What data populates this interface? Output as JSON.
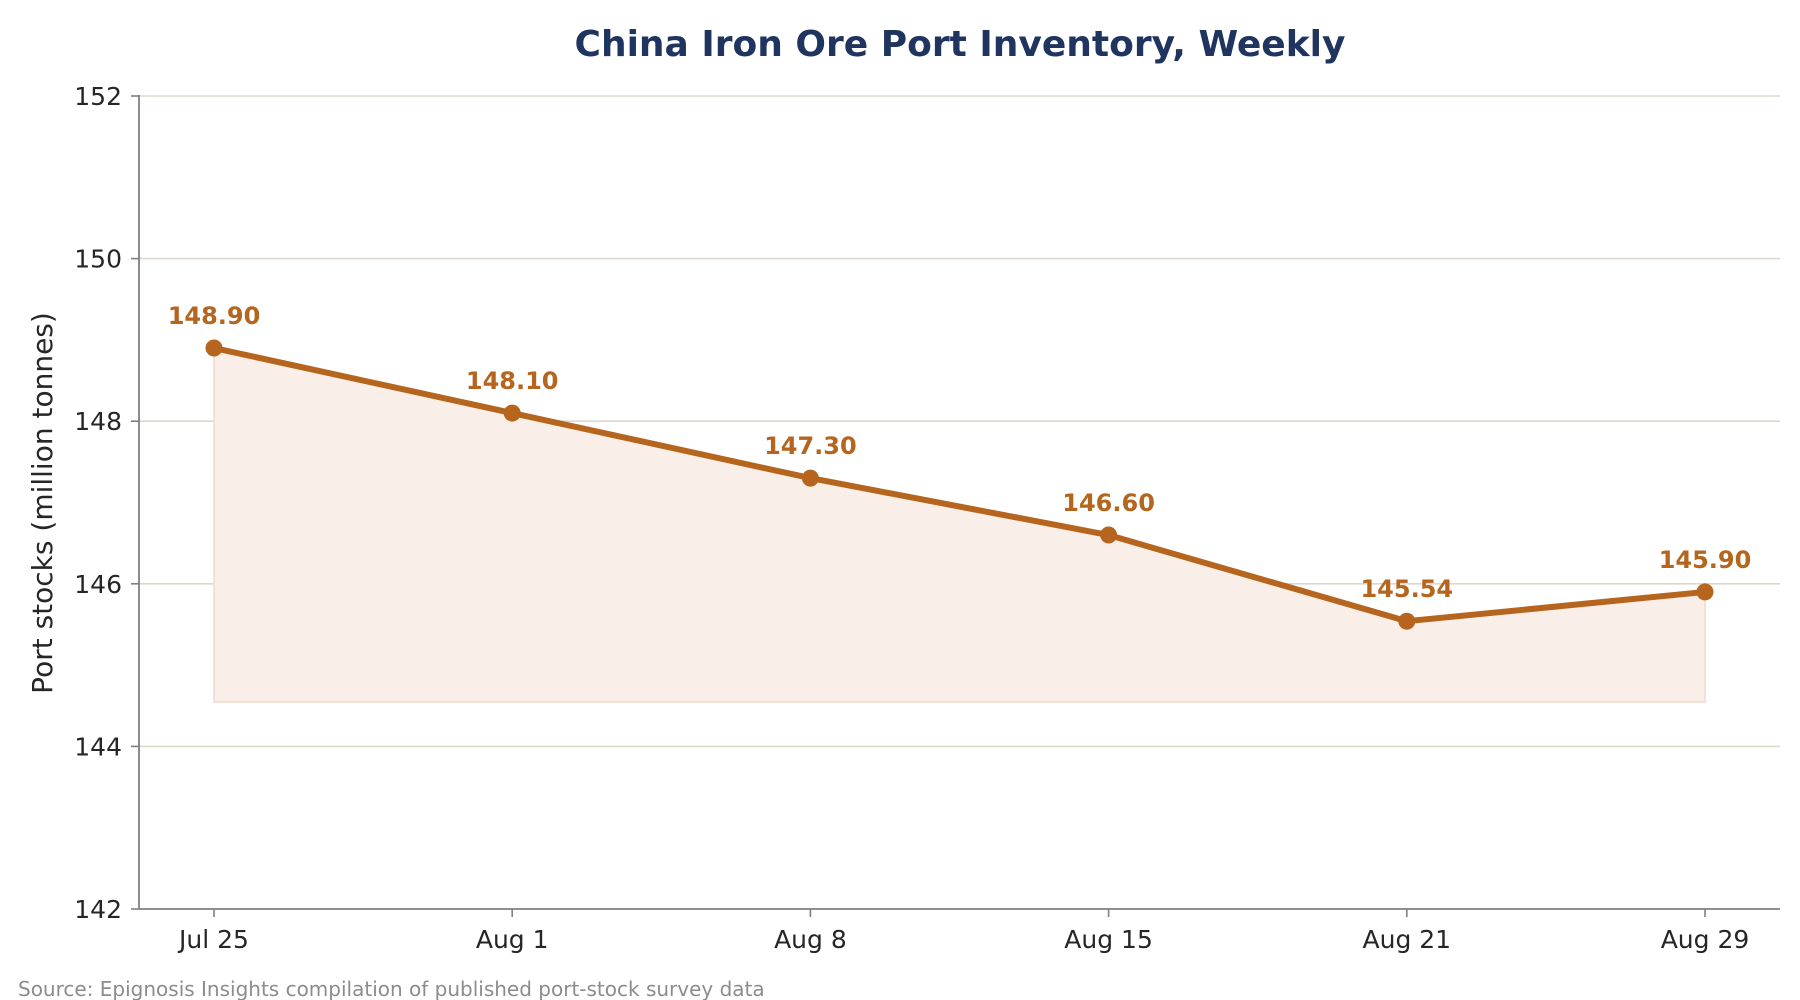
{
  "chart_data": {
    "type": "line",
    "title": "China Iron Ore Port Inventory, Weekly",
    "xlabel": "",
    "ylabel": "Port stocks (million tonnes)",
    "categories": [
      "Jul 25",
      "Aug 1",
      "Aug 8",
      "Aug 15",
      "Aug 21",
      "Aug 29"
    ],
    "series": [
      {
        "values": [
          148.9,
          148.1,
          147.3,
          146.6,
          145.54,
          145.9
        ],
        "labels": [
          "148.90",
          "148.10",
          "147.30",
          "146.60",
          "145.54",
          "145.90"
        ],
        "color": "#b5651d"
      }
    ],
    "ylim": [
      142,
      152
    ],
    "yticks": [
      142,
      144,
      146,
      148,
      150,
      152
    ],
    "grid": true,
    "legend": "none"
  },
  "source_note": "Source: Epignosis Insights compilation of published port-stock survey data",
  "colors": {
    "title": "#1f3560",
    "axis": "#808080",
    "tick_text": "#262626",
    "grid": "#ddd8cc",
    "fill": "#faeee8",
    "fill_edge": "#f4e0d4",
    "source_text": "#8c8c8c"
  }
}
